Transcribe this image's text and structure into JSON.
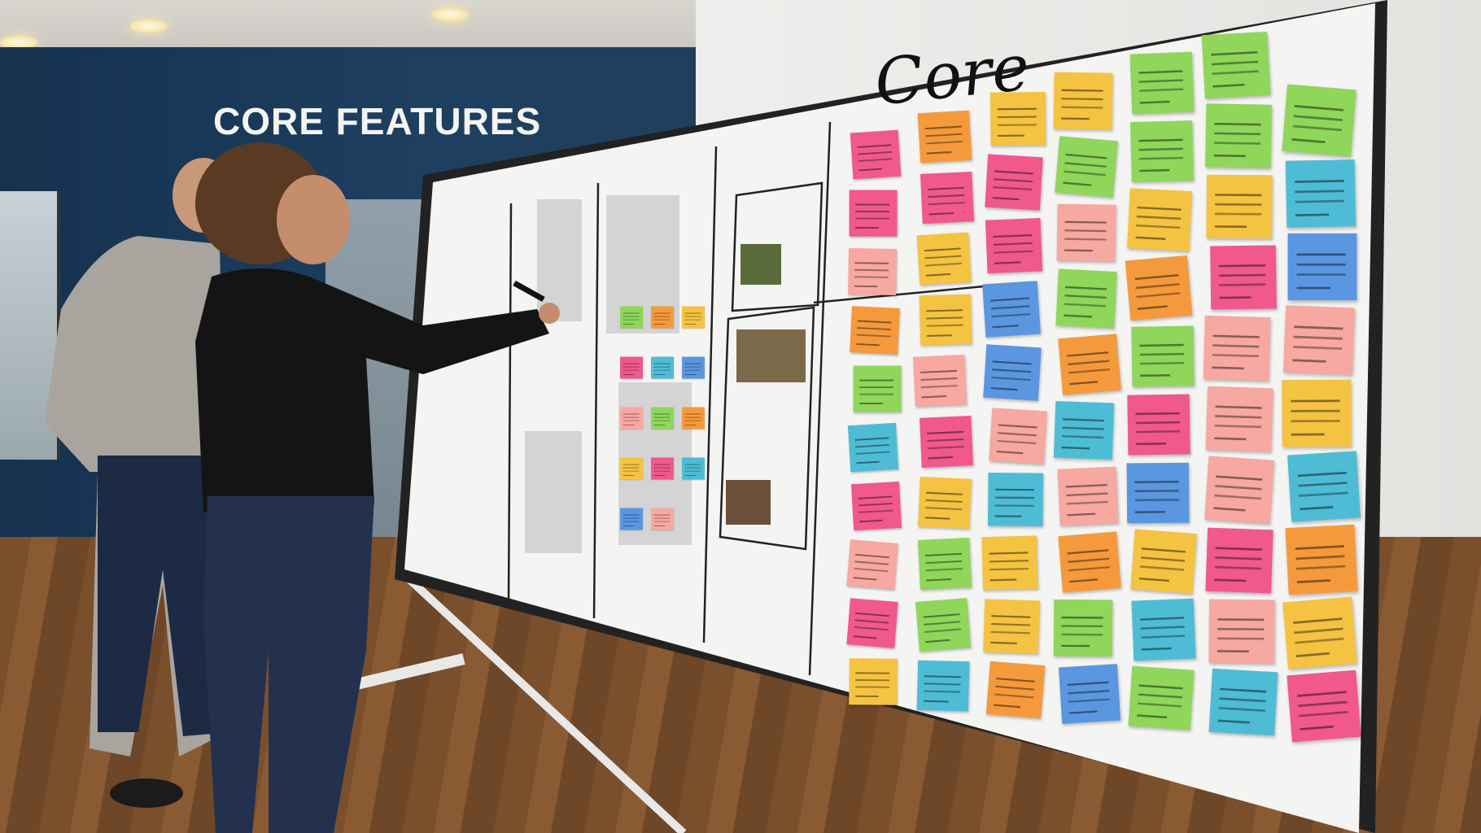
{
  "scene": {
    "wall_sign": "CORE FEATURES",
    "board_title": "Core"
  },
  "colors": {
    "wall": "#1e3f60",
    "board": "#f4f4f2",
    "sticky_notes": [
      "#8fd65a",
      "#f59a3c",
      "#f5c342",
      "#f0588e",
      "#4fbcd6",
      "#5b97e0",
      "#f7a8a0"
    ]
  }
}
